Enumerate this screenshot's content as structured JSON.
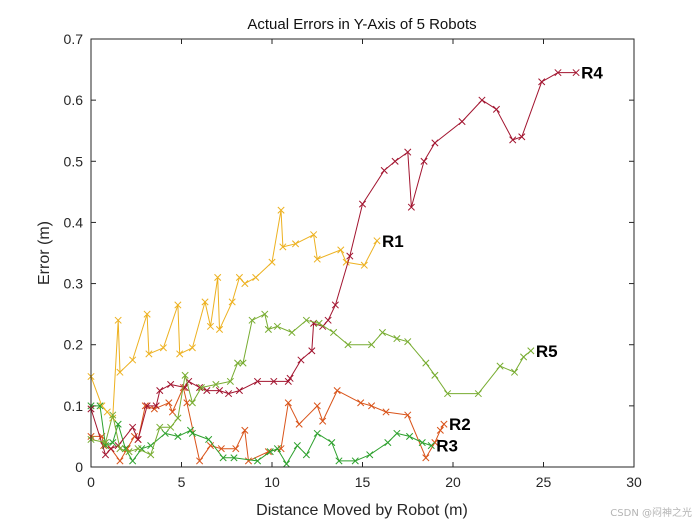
{
  "chart_data": {
    "type": "line",
    "marker": "x",
    "title": "Actual Errors in Y-Axis of 5 Robots",
    "xlabel": "Distance Moved by Robot (m)",
    "ylabel": "Error (m)",
    "xlim": [
      0,
      30
    ],
    "ylim": [
      0,
      0.7
    ],
    "xticks": [
      "0",
      "5",
      "10",
      "15",
      "20",
      "25",
      "30"
    ],
    "yticks": [
      "0",
      "0.1",
      "0.2",
      "0.3",
      "0.4",
      "0.5",
      "0.6",
      "0.7"
    ],
    "grid": false,
    "series": [
      {
        "name": "R1",
        "color": "#edb120",
        "points": [
          [
            0,
            0.148
          ],
          [
            0.6,
            0.1
          ],
          [
            0.9,
            0.09
          ],
          [
            1.2,
            0.08
          ],
          [
            1.5,
            0.24
          ],
          [
            1.6,
            0.155
          ],
          [
            2.3,
            0.175
          ],
          [
            3.1,
            0.25
          ],
          [
            3.2,
            0.185
          ],
          [
            4,
            0.195
          ],
          [
            4.8,
            0.265
          ],
          [
            4.9,
            0.185
          ],
          [
            5.6,
            0.195
          ],
          [
            6.3,
            0.27
          ],
          [
            6.6,
            0.23
          ],
          [
            7,
            0.31
          ],
          [
            7.1,
            0.225
          ],
          [
            7.8,
            0.27
          ],
          [
            8.2,
            0.31
          ],
          [
            8.5,
            0.3
          ],
          [
            9.1,
            0.31
          ],
          [
            10,
            0.335
          ],
          [
            10.5,
            0.42
          ],
          [
            10.6,
            0.36
          ],
          [
            11.3,
            0.365
          ],
          [
            12.3,
            0.38
          ],
          [
            12.5,
            0.34
          ],
          [
            13.8,
            0.355
          ],
          [
            14.1,
            0.335
          ],
          [
            15.1,
            0.33
          ],
          [
            15.8,
            0.37
          ]
        ],
        "label": "R1"
      },
      {
        "name": "R2",
        "color": "#d95319",
        "points": [
          [
            0,
            0.05
          ],
          [
            0.6,
            0.05
          ],
          [
            0.7,
            0.035
          ],
          [
            1.1,
            0.03
          ],
          [
            1.6,
            0.01
          ],
          [
            2,
            0.03
          ],
          [
            2.4,
            0.05
          ],
          [
            2.6,
            0.045
          ],
          [
            3,
            0.1
          ],
          [
            3.5,
            0.095
          ],
          [
            4.3,
            0.105
          ],
          [
            4.5,
            0.09
          ],
          [
            5.1,
            0.13
          ],
          [
            5.3,
            0.105
          ],
          [
            6,
            0.01
          ],
          [
            6.6,
            0.035
          ],
          [
            7.2,
            0.03
          ],
          [
            8,
            0.03
          ],
          [
            8.5,
            0.06
          ],
          [
            8.7,
            0.01
          ],
          [
            9.8,
            0.025
          ],
          [
            10.5,
            0.03
          ],
          [
            10.9,
            0.105
          ],
          [
            11.5,
            0.07
          ],
          [
            12.5,
            0.1
          ],
          [
            12.8,
            0.075
          ],
          [
            13.6,
            0.125
          ],
          [
            14.9,
            0.105
          ],
          [
            15.5,
            0.1
          ],
          [
            16.3,
            0.09
          ],
          [
            17.5,
            0.085
          ],
          [
            18.5,
            0.015
          ],
          [
            19,
            0.04
          ],
          [
            19.3,
            0.06
          ],
          [
            19.5,
            0.07
          ]
        ],
        "label": "R2"
      },
      {
        "name": "R3",
        "color": "#2ca02c",
        "points": [
          [
            0,
            0.1
          ],
          [
            0.5,
            0.1
          ],
          [
            0.8,
            0.035
          ],
          [
            1.2,
            0.04
          ],
          [
            1.5,
            0.07
          ],
          [
            1.9,
            0.03
          ],
          [
            2.3,
            0.01
          ],
          [
            2.8,
            0.03
          ],
          [
            3.3,
            0.035
          ],
          [
            4.1,
            0.055
          ],
          [
            4.8,
            0.05
          ],
          [
            5.5,
            0.06
          ],
          [
            5.6,
            0.055
          ],
          [
            6.5,
            0.045
          ],
          [
            7.3,
            0.015
          ],
          [
            7.9,
            0.015
          ],
          [
            9.2,
            0.01
          ],
          [
            9.9,
            0.025
          ],
          [
            10.3,
            0.03
          ],
          [
            10.8,
            0.005
          ],
          [
            11.4,
            0.035
          ],
          [
            11.9,
            0.02
          ],
          [
            12.5,
            0.055
          ],
          [
            13.3,
            0.04
          ],
          [
            13.7,
            0.01
          ],
          [
            14.6,
            0.01
          ],
          [
            15.4,
            0.02
          ],
          [
            16.4,
            0.04
          ],
          [
            16.9,
            0.055
          ],
          [
            17.6,
            0.05
          ],
          [
            18.3,
            0.04
          ],
          [
            18.8,
            0.035
          ]
        ],
        "label": "R3"
      },
      {
        "name": "R4",
        "color": "#a2142f",
        "points": [
          [
            0,
            0.095
          ],
          [
            0.8,
            0.02
          ],
          [
            1.1,
            0.03
          ],
          [
            1.5,
            0.035
          ],
          [
            2.3,
            0.065
          ],
          [
            2.6,
            0.045
          ],
          [
            3.1,
            0.1
          ],
          [
            3.6,
            0.1
          ],
          [
            3.8,
            0.125
          ],
          [
            4.4,
            0.135
          ],
          [
            5.2,
            0.13
          ],
          [
            5.4,
            0.14
          ],
          [
            6,
            0.13
          ],
          [
            6.4,
            0.125
          ],
          [
            7.1,
            0.125
          ],
          [
            7.6,
            0.12
          ],
          [
            8.2,
            0.125
          ],
          [
            9.2,
            0.14
          ],
          [
            10.1,
            0.14
          ],
          [
            10.9,
            0.14
          ],
          [
            11,
            0.145
          ],
          [
            11.6,
            0.175
          ],
          [
            12.2,
            0.19
          ],
          [
            12.3,
            0.235
          ],
          [
            12.8,
            0.23
          ],
          [
            13.1,
            0.24
          ],
          [
            13.5,
            0.265
          ],
          [
            14.3,
            0.345
          ],
          [
            15,
            0.43
          ],
          [
            16.2,
            0.485
          ],
          [
            16.8,
            0.5
          ],
          [
            17.5,
            0.515
          ],
          [
            17.7,
            0.425
          ],
          [
            18.4,
            0.5
          ],
          [
            19,
            0.53
          ],
          [
            20.5,
            0.565
          ],
          [
            21.6,
            0.6
          ],
          [
            22.4,
            0.585
          ],
          [
            23.3,
            0.535
          ],
          [
            23.8,
            0.54
          ],
          [
            24.9,
            0.63
          ],
          [
            25.8,
            0.645
          ],
          [
            26.8,
            0.645
          ]
        ],
        "label": "R4"
      },
      {
        "name": "R5",
        "color": "#77ac30",
        "points": [
          [
            0,
            0.045
          ],
          [
            0.8,
            0.04
          ],
          [
            1.2,
            0.085
          ],
          [
            1.6,
            0.03
          ],
          [
            2.1,
            0.025
          ],
          [
            2.6,
            0.03
          ],
          [
            3.3,
            0.02
          ],
          [
            3.8,
            0.065
          ],
          [
            4.4,
            0.065
          ],
          [
            4.8,
            0.08
          ],
          [
            5.2,
            0.15
          ],
          [
            5.6,
            0.105
          ],
          [
            6.1,
            0.13
          ],
          [
            6.9,
            0.135
          ],
          [
            7.7,
            0.14
          ],
          [
            8.1,
            0.17
          ],
          [
            8.4,
            0.17
          ],
          [
            8.9,
            0.24
          ],
          [
            9.6,
            0.25
          ],
          [
            9.8,
            0.225
          ],
          [
            10.3,
            0.23
          ],
          [
            11.1,
            0.22
          ],
          [
            11.9,
            0.24
          ],
          [
            12.6,
            0.235
          ],
          [
            13.4,
            0.22
          ],
          [
            14.2,
            0.2
          ],
          [
            15.5,
            0.2
          ],
          [
            16.1,
            0.22
          ],
          [
            16.9,
            0.21
          ],
          [
            17.5,
            0.205
          ],
          [
            18.5,
            0.17
          ],
          [
            19,
            0.15
          ],
          [
            19.7,
            0.12
          ],
          [
            21.4,
            0.12
          ],
          [
            22.6,
            0.165
          ],
          [
            23.4,
            0.155
          ],
          [
            23.9,
            0.18
          ],
          [
            24.3,
            0.19
          ]
        ],
        "label": "R5"
      }
    ]
  },
  "watermark": "CSDN @闷神之光"
}
